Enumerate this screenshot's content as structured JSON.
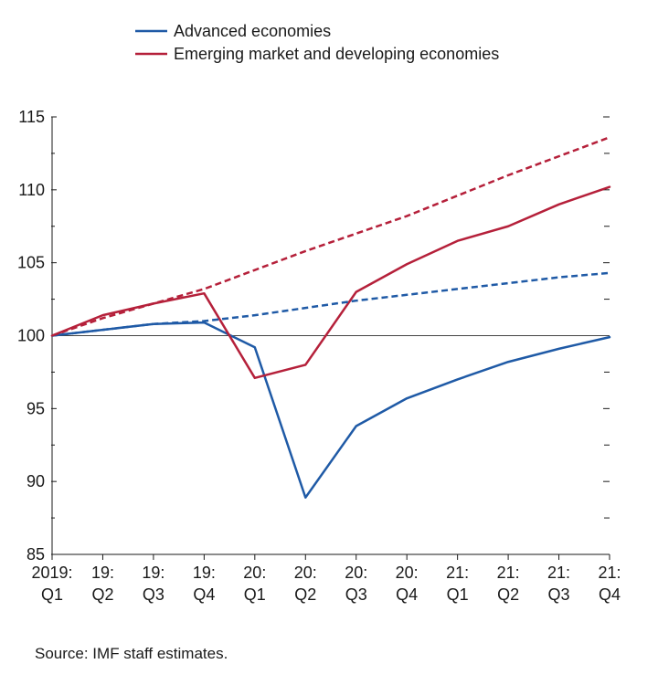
{
  "chart_data": {
    "type": "line",
    "categories": [
      "2019:\nQ1",
      "19:\nQ2",
      "19:\nQ3",
      "19:\nQ4",
      "20:\nQ1",
      "20:\nQ2",
      "20:\nQ3",
      "20:\nQ4",
      "21:\nQ1",
      "21:\nQ2",
      "21:\nQ3",
      "21:\nQ4"
    ],
    "ylim": [
      85,
      115
    ],
    "yticks": [
      85,
      90,
      95,
      100,
      105,
      110,
      115
    ],
    "yticks_minor": [
      87.5,
      92.5,
      97.5,
      102.5,
      107.5,
      112.5
    ],
    "reference_line": 100,
    "grid": false,
    "legend_position": "top-left",
    "series": [
      {
        "name": "Advanced economies",
        "color": "#1f5aa6",
        "style": "solid",
        "values": [
          100,
          100.4,
          100.8,
          100.9,
          99.2,
          88.9,
          93.8,
          95.7,
          97.0,
          98.2,
          99.1,
          99.9
        ]
      },
      {
        "name": "Emerging market and developing economies",
        "color": "#b5203a",
        "style": "solid",
        "values": [
          100,
          101.4,
          102.2,
          102.9,
          97.1,
          98.0,
          103.0,
          104.9,
          106.5,
          107.5,
          109.0,
          110.2
        ]
      },
      {
        "name": "",
        "color": "#1f5aa6",
        "style": "dashed",
        "values": [
          100,
          100.4,
          100.8,
          101.0,
          101.4,
          101.9,
          102.4,
          102.8,
          103.2,
          103.6,
          104.0,
          104.3
        ]
      },
      {
        "name": "",
        "color": "#b5203a",
        "style": "dashed",
        "values": [
          100,
          101.2,
          102.2,
          103.2,
          104.5,
          105.8,
          107.0,
          108.2,
          109.6,
          111.0,
          112.3,
          113.6
        ]
      }
    ]
  },
  "source": "Source: IMF staff estimates."
}
